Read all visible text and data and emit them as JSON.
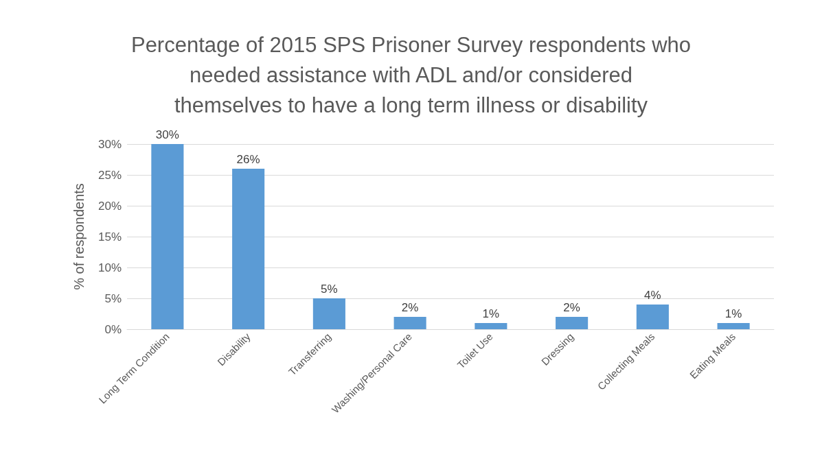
{
  "chart_data": {
    "type": "bar",
    "title": "Percentage of 2015 SPS Prisoner Survey respondents who needed assistance with ADL and/or considered themselves to have a long term illness or disability",
    "ylabel": "% of respondents",
    "categories": [
      "Long Term Condition",
      "Disability",
      "Transferring",
      "Washing/Personal Care",
      "Toilet Use",
      "Dressing",
      "Collecting Meals",
      "Eating Meals"
    ],
    "values": [
      30,
      26,
      5,
      2,
      1,
      2,
      4,
      1
    ],
    "value_labels": [
      "30%",
      "26%",
      "5%",
      "2%",
      "1%",
      "2%",
      "4%",
      "1%"
    ],
    "color": "#5b9bd5",
    "ylim": [
      0,
      30
    ],
    "yticks": [
      {
        "value": 0,
        "label": "0%"
      },
      {
        "value": 5,
        "label": "5%"
      },
      {
        "value": 10,
        "label": "10%"
      },
      {
        "value": 15,
        "label": "15%"
      },
      {
        "value": 20,
        "label": "20%"
      },
      {
        "value": 25,
        "label": "25%"
      },
      {
        "value": 30,
        "label": "30%"
      }
    ],
    "grid": "y"
  }
}
